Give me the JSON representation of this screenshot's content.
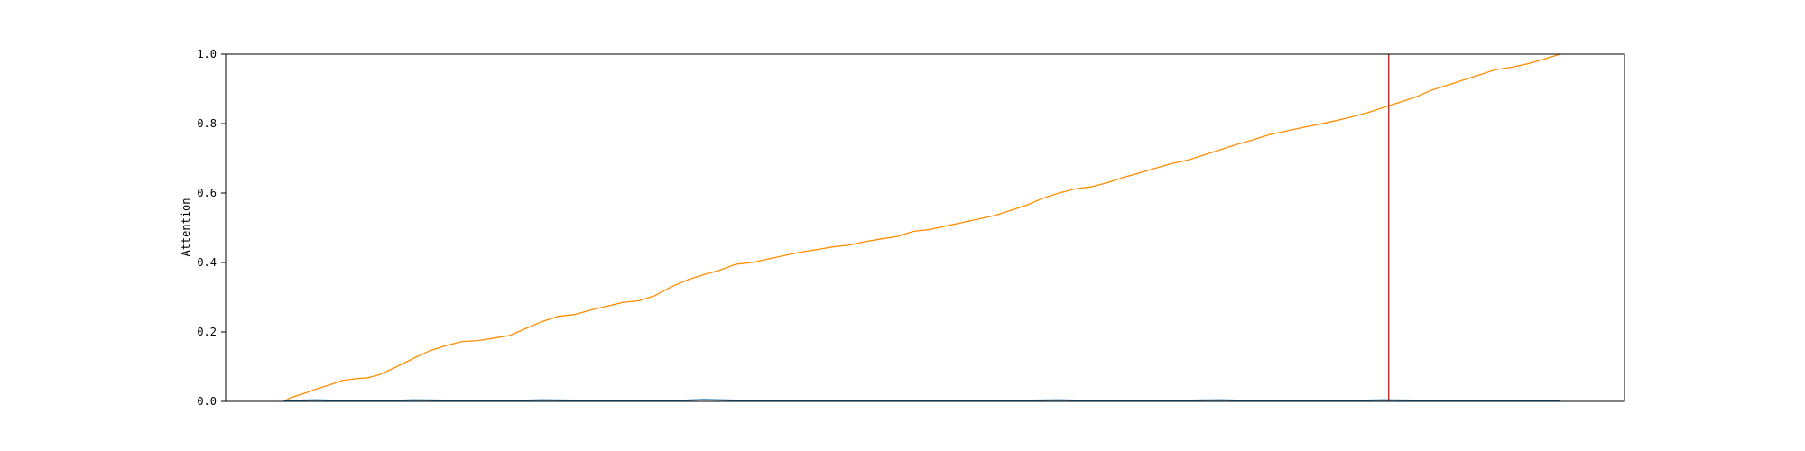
{
  "chart_data": {
    "type": "line",
    "title": "",
    "xlabel": "",
    "ylabel": "Attention",
    "xlim": [
      -18,
      415
    ],
    "ylim": [
      0.0,
      1.0
    ],
    "yticks": [
      "0.0",
      "0.2",
      "0.4",
      "0.6",
      "0.8",
      "1.0"
    ],
    "grid": false,
    "legend": "none",
    "colors": {
      "cumulative": "#ff8c00",
      "attention": "#1f77b4",
      "marker": "#d62728"
    },
    "vline_x": 342,
    "series": [
      {
        "key": "cumulative",
        "color": "#ff8c00",
        "x": [
          0,
          2,
          7,
          10,
          15,
          18,
          22,
          26,
          30,
          35,
          40,
          45,
          50,
          55,
          60,
          65,
          70,
          75,
          80,
          85,
          90,
          95,
          100,
          105,
          110,
          115,
          120,
          125,
          130,
          135,
          140,
          145,
          150,
          155,
          160,
          165,
          170,
          175,
          180,
          185,
          190,
          195,
          200,
          205,
          210,
          215,
          220,
          225,
          230,
          235,
          240,
          245,
          250,
          255,
          260,
          265,
          270,
          275,
          280,
          285,
          290,
          295,
          300,
          305,
          310,
          315,
          320,
          325,
          330,
          335,
          340,
          345,
          350,
          355,
          360,
          365,
          370,
          375,
          380,
          385,
          390,
          395
        ],
        "y": [
          0.0,
          0.01,
          0.025,
          0.035,
          0.05,
          0.06,
          0.065,
          0.068,
          0.078,
          0.1,
          0.123,
          0.145,
          0.16,
          0.172,
          0.175,
          0.182,
          0.19,
          0.21,
          0.23,
          0.245,
          0.25,
          0.263,
          0.274,
          0.285,
          0.29,
          0.305,
          0.33,
          0.35,
          0.365,
          0.378,
          0.395,
          0.4,
          0.41,
          0.42,
          0.43,
          0.437,
          0.445,
          0.45,
          0.46,
          0.468,
          0.475,
          0.49,
          0.495,
          0.505,
          0.515,
          0.525,
          0.535,
          0.55,
          0.565,
          0.585,
          0.6,
          0.612,
          0.618,
          0.63,
          0.645,
          0.658,
          0.672,
          0.685,
          0.695,
          0.71,
          0.725,
          0.74,
          0.753,
          0.768,
          0.778,
          0.788,
          0.797,
          0.807,
          0.818,
          0.83,
          0.845,
          0.86,
          0.875,
          0.895,
          0.91,
          0.925,
          0.94,
          0.955,
          0.962,
          0.972,
          0.985,
          1.0
        ]
      },
      {
        "key": "attention",
        "color": "#1f77b4",
        "x": [
          0,
          10,
          20,
          30,
          40,
          50,
          60,
          70,
          80,
          90,
          100,
          110,
          120,
          130,
          140,
          150,
          160,
          170,
          180,
          190,
          200,
          210,
          220,
          230,
          240,
          250,
          260,
          270,
          280,
          290,
          300,
          310,
          320,
          330,
          340,
          350,
          360,
          370,
          380,
          390,
          395
        ],
        "y": [
          0.002,
          0.004,
          0.002,
          0.001,
          0.004,
          0.003,
          0.001,
          0.002,
          0.004,
          0.003,
          0.002,
          0.003,
          0.002,
          0.005,
          0.003,
          0.002,
          0.003,
          0.001,
          0.002,
          0.003,
          0.002,
          0.003,
          0.002,
          0.003,
          0.004,
          0.002,
          0.003,
          0.002,
          0.003,
          0.004,
          0.002,
          0.003,
          0.002,
          0.002,
          0.004,
          0.003,
          0.003,
          0.002,
          0.002,
          0.003,
          0.003
        ]
      }
    ]
  }
}
